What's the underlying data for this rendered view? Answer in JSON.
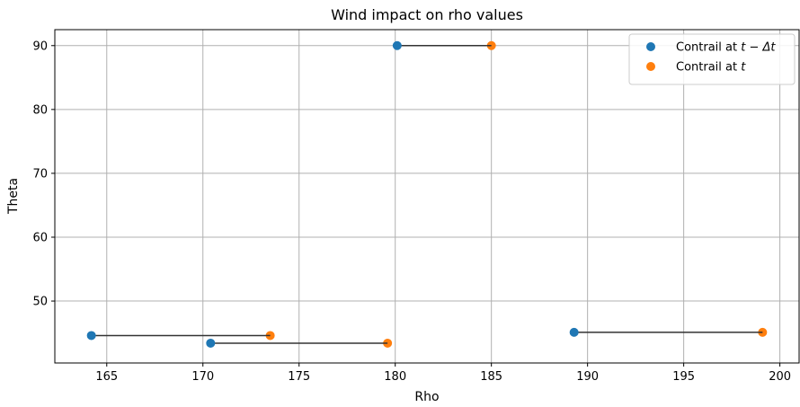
{
  "chart_data": {
    "type": "scatter",
    "title": "Wind impact on rho values",
    "xlabel": "Rho",
    "ylabel": "Theta",
    "xlim": [
      162.3,
      201.0
    ],
    "ylim": [
      40.3,
      92.5
    ],
    "xticks": [
      165,
      170,
      175,
      180,
      185,
      190,
      195,
      200
    ],
    "yticks": [
      50,
      60,
      70,
      80,
      90
    ],
    "grid": true,
    "legend_position": "top-right",
    "series": [
      {
        "name": "Contrail at t − Δt",
        "color": "#1f77b4",
        "points": [
          {
            "x": 164.2,
            "y": 44.6
          },
          {
            "x": 170.4,
            "y": 43.4
          },
          {
            "x": 180.1,
            "y": 90.0
          },
          {
            "x": 189.3,
            "y": 45.1
          }
        ]
      },
      {
        "name": "Contrail at t",
        "color": "#ff7f0e",
        "points": [
          {
            "x": 173.5,
            "y": 44.6
          },
          {
            "x": 179.6,
            "y": 43.4
          },
          {
            "x": 185.0,
            "y": 90.0
          },
          {
            "x": 199.1,
            "y": 45.1
          }
        ]
      }
    ],
    "connections": [
      {
        "from": [
          164.2,
          44.6
        ],
        "to": [
          173.5,
          44.6
        ]
      },
      {
        "from": [
          170.4,
          43.4
        ],
        "to": [
          179.6,
          43.4
        ]
      },
      {
        "from": [
          180.1,
          90.0
        ],
        "to": [
          185.0,
          90.0
        ]
      },
      {
        "from": [
          189.3,
          45.1
        ],
        "to": [
          199.1,
          45.1
        ]
      }
    ],
    "connection_color": "#333333",
    "legend": [
      {
        "prefix": "Contrail at ",
        "math": "t − Δt"
      },
      {
        "prefix": "Contrail at ",
        "math": "t"
      }
    ]
  }
}
